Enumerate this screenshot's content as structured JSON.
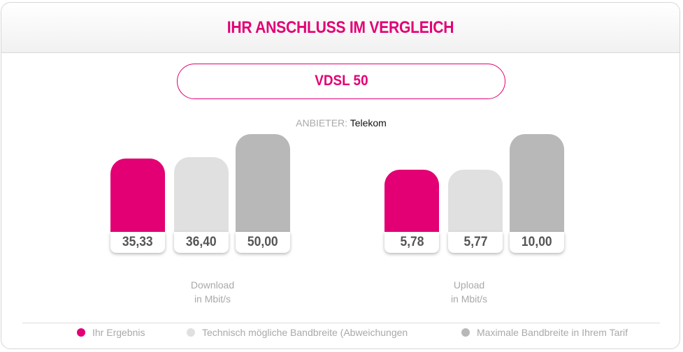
{
  "header": {
    "title": "IHR ANSCHLUSS IM VERGLEICH"
  },
  "tariff": {
    "label": "VDSL 50"
  },
  "provider": {
    "label": "ANBIETER:",
    "value": "Telekom"
  },
  "colors": {
    "result": "#e20074",
    "technical": "#e0e0e0",
    "maximum": "#b8b8b8"
  },
  "chart_data": [
    {
      "type": "bar",
      "title": "Download",
      "unit": "in Mbit/s",
      "series": [
        "Ihr Ergebnis",
        "Technisch mögliche Bandbreite (Abweichungen",
        "Maximale Bandbreite in Ihrem Tarif"
      ],
      "values": [
        35.33,
        36.4,
        50.0
      ],
      "display_values": [
        "35,33",
        "36,40",
        "50,00"
      ]
    },
    {
      "type": "bar",
      "title": "Upload",
      "unit": "in Mbit/s",
      "series": [
        "Ihr Ergebnis",
        "Technisch mögliche Bandbreite (Abweichungen",
        "Maximale Bandbreite in Ihrem Tarif"
      ],
      "values": [
        5.78,
        5.77,
        10.0
      ],
      "display_values": [
        "5,78",
        "5,77",
        "10,00"
      ]
    }
  ],
  "legend": [
    {
      "label": "Ihr Ergebnis",
      "color": "#e20074"
    },
    {
      "label": "Technisch mögliche Bandbreite (Abweichungen",
      "color": "#e0e0e0"
    },
    {
      "label": "Maximale Bandbreite in Ihrem Tarif",
      "color": "#b8b8b8"
    }
  ]
}
